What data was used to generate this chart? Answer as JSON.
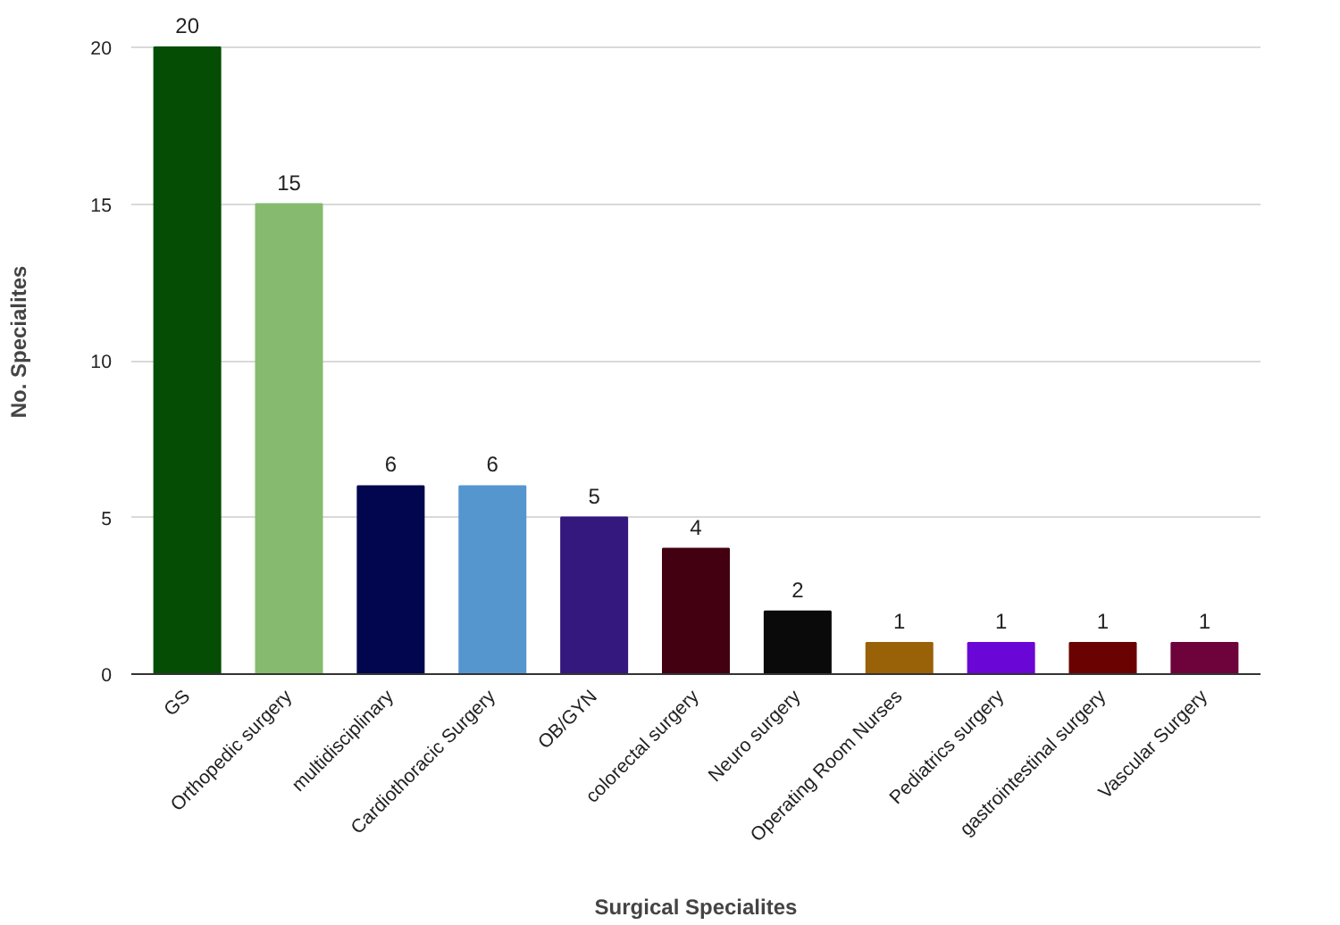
{
  "chart_data": {
    "type": "bar",
    "xlabel": "Surgical Specialites",
    "ylabel": "No. Specialites",
    "categories": [
      "GS",
      "Orthopedic surgery",
      "multidisciplinary",
      "Cardiothoracic Surgery",
      "OB/GYN",
      "colorectal surgery",
      "Neuro surgery",
      "Operating Room Nurses",
      "Pediatrics surgery",
      "gastrointestinal surgery",
      "Vascular Surgery"
    ],
    "values": [
      20,
      15,
      6,
      6,
      5,
      4,
      2,
      1,
      1,
      1,
      1
    ],
    "colors": [
      "#054d05",
      "#86bb6f",
      "#02064f",
      "#5696cf",
      "#35187e",
      "#420010",
      "#0a0a0a",
      "#9a6208",
      "#6a06d6",
      "#6b0202",
      "#6e033b"
    ],
    "ylim": [
      0,
      20
    ],
    "yticks": [
      0,
      5,
      10,
      15,
      20
    ],
    "grid": "y",
    "data_labels": true
  }
}
